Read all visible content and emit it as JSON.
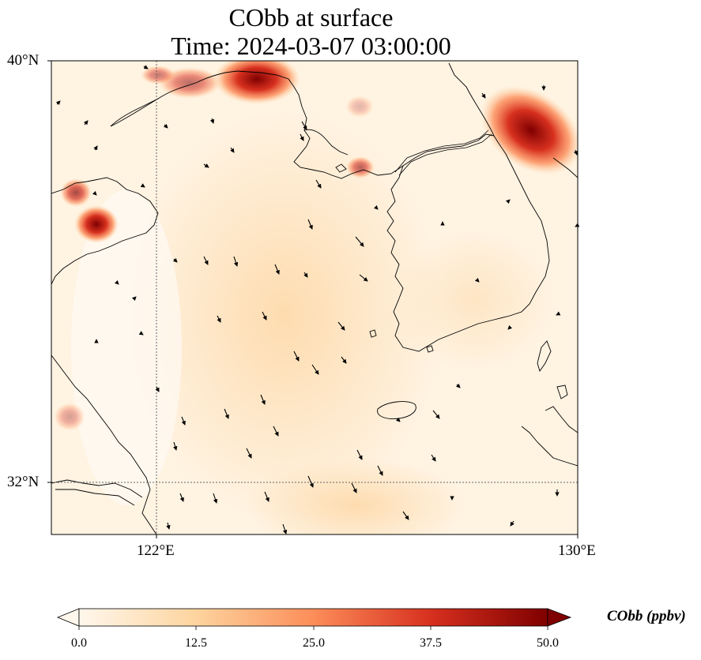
{
  "title": {
    "line1": "CObb at surface",
    "line2": "Time: 2024-03-07 03:00:00"
  },
  "axes": {
    "lat_ticks": [
      {
        "value": 40,
        "label": "40°N"
      },
      {
        "value": 32,
        "label": "32°N"
      }
    ],
    "lon_ticks": [
      {
        "value": 122,
        "label": "122°E"
      },
      {
        "value": 130,
        "label": "130°E"
      }
    ],
    "lon_range": [
      120,
      130
    ],
    "lat_range": [
      31,
      40
    ],
    "gridlines": "dotted"
  },
  "colorbar": {
    "label": "CObb (ppbv)",
    "ticks": [
      "0.0",
      "12.5",
      "25.0",
      "37.5",
      "50.0"
    ],
    "range": [
      0,
      50
    ],
    "colormap": "OrRd",
    "extend": "both",
    "colors": [
      "#fff7ec",
      "#fdd49e",
      "#fc8d59",
      "#d7301f",
      "#7f0000"
    ]
  },
  "features": [
    "coastlines",
    "wind vectors",
    "CObb concentration field"
  ]
}
